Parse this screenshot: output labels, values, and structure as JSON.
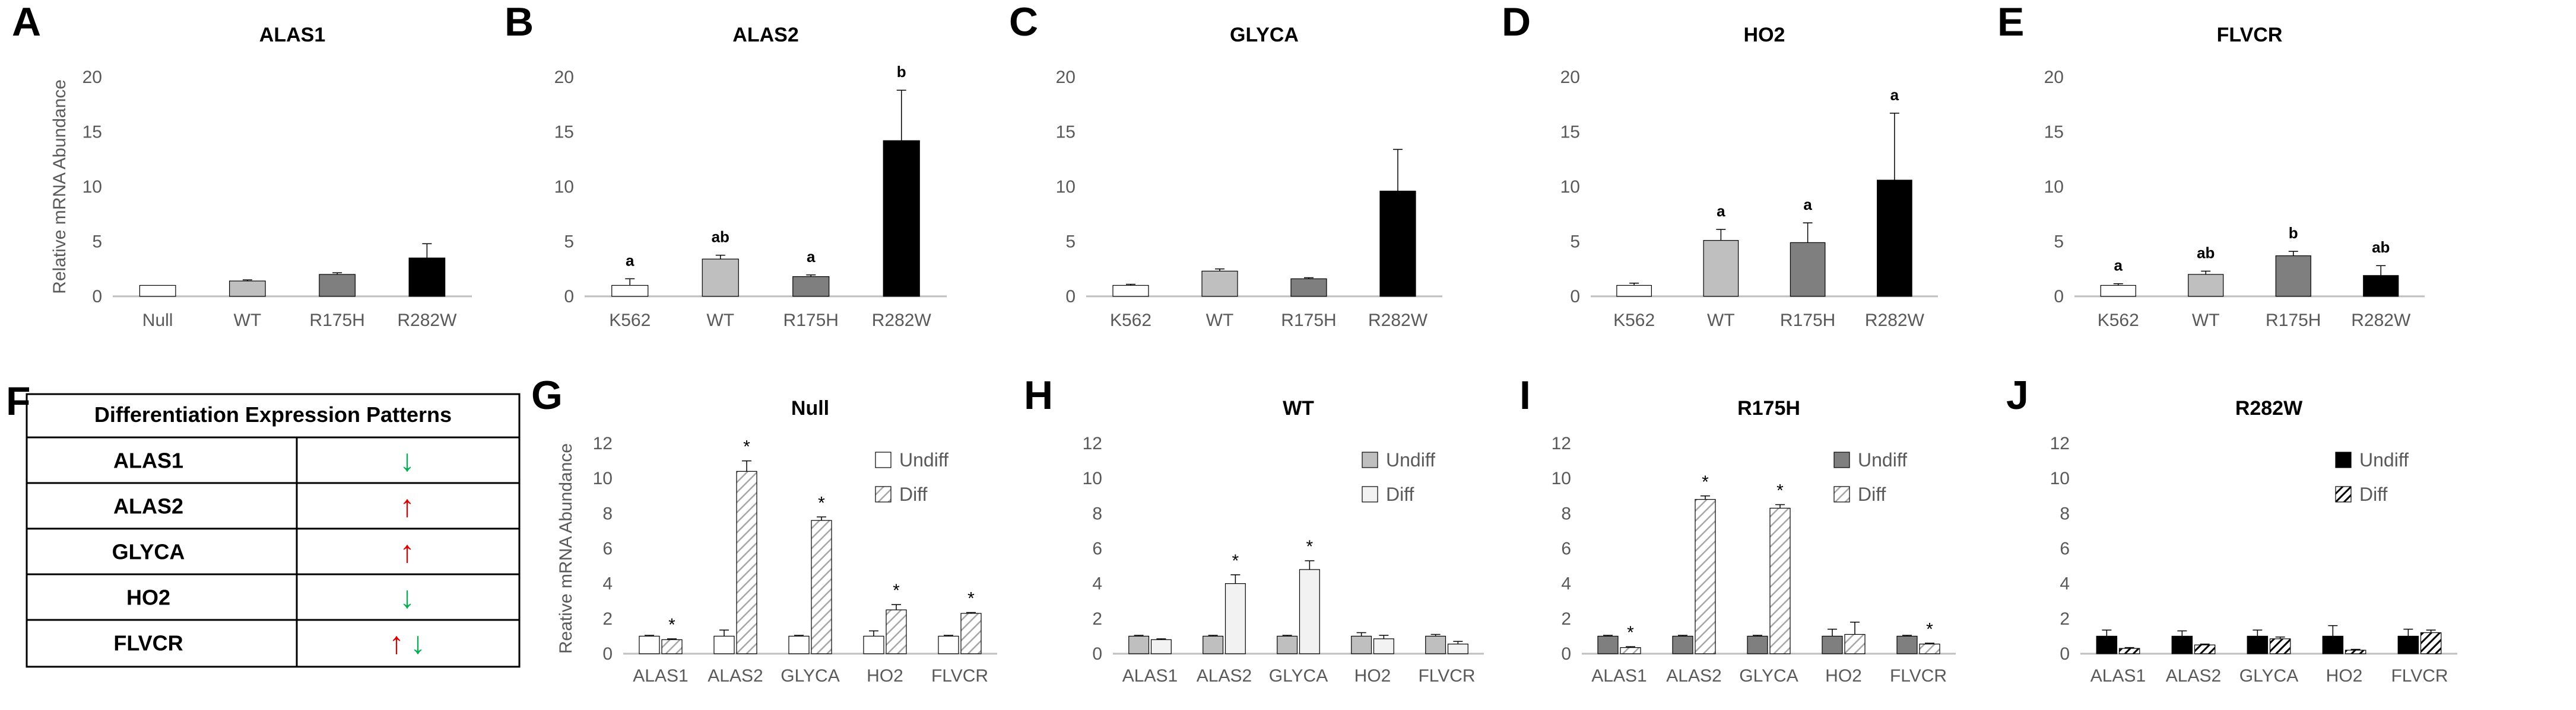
{
  "colors": {
    "null": "#ffffff",
    "wt": "#bfbfbf",
    "r175h": "#7f7f7f",
    "r282w": "#000000",
    "axis": "#bfbfbf",
    "text": "#595959",
    "arrow_up": "#e00000",
    "arrow_down": "#00b050"
  },
  "table": {
    "letter": "F",
    "header": "Differentiation Expression Patterns",
    "rows": [
      {
        "gene": "ALAS1",
        "arrows": [
          {
            "glyph": "↓",
            "dir": "down"
          }
        ]
      },
      {
        "gene": "ALAS2",
        "arrows": [
          {
            "glyph": "↑",
            "dir": "up"
          }
        ]
      },
      {
        "gene": "GLYCA",
        "arrows": [
          {
            "glyph": "↑",
            "dir": "up"
          }
        ]
      },
      {
        "gene": "HO2",
        "arrows": [
          {
            "glyph": "↓",
            "dir": "down"
          }
        ]
      },
      {
        "gene": "FLVCR",
        "arrows": [
          {
            "glyph": "↑",
            "dir": "up"
          },
          {
            "glyph": "↓",
            "dir": "down"
          }
        ]
      }
    ]
  },
  "chart_data": [
    {
      "id": "A",
      "type": "bar",
      "letter": "A",
      "title": "ALAS1",
      "ylabel": "Relative mRNA Abundance",
      "ylim": [
        0,
        20
      ],
      "yticks": [
        "0",
        "5",
        "10",
        "15",
        "20"
      ],
      "categories": [
        "Null",
        "WT",
        "R175H",
        "R282W"
      ],
      "values": [
        1.0,
        1.4,
        2.0,
        3.5
      ],
      "errors": [
        0.0,
        0.1,
        0.15,
        1.3
      ],
      "fills": [
        "null",
        "wt",
        "r175h",
        "r282w"
      ],
      "labels": [
        "",
        "",
        "",
        ""
      ]
    },
    {
      "id": "B",
      "type": "bar",
      "letter": "B",
      "title": "ALAS2",
      "ylabel": "",
      "ylim": [
        0,
        20
      ],
      "yticks": [
        "0",
        "5",
        "10",
        "15",
        "20"
      ],
      "categories": [
        "K562",
        "WT",
        "R175H",
        "R282W"
      ],
      "values": [
        1.0,
        3.4,
        1.8,
        14.2
      ],
      "errors": [
        0.6,
        0.35,
        0.15,
        4.6
      ],
      "fills": [
        "null",
        "wt",
        "r175h",
        "r282w"
      ],
      "labels": [
        "a",
        "ab",
        "a",
        "b"
      ]
    },
    {
      "id": "C",
      "type": "bar",
      "letter": "C",
      "title": "GLYCA",
      "ylabel": "",
      "ylim": [
        0,
        20
      ],
      "yticks": [
        "0",
        "5",
        "10",
        "15",
        "20"
      ],
      "categories": [
        "K562",
        "WT",
        "R175H",
        "R282W"
      ],
      "values": [
        1.0,
        2.3,
        1.6,
        9.6
      ],
      "errors": [
        0.1,
        0.2,
        0.1,
        3.8
      ],
      "fills": [
        "null",
        "wt",
        "r175h",
        "r282w"
      ],
      "labels": [
        "",
        "",
        "",
        ""
      ]
    },
    {
      "id": "D",
      "type": "bar",
      "letter": "D",
      "title": "HO2",
      "ylabel": "",
      "ylim": [
        0,
        20
      ],
      "yticks": [
        "0",
        "5",
        "10",
        "15",
        "20"
      ],
      "categories": [
        "K562",
        "WT",
        "R175H",
        "R282W"
      ],
      "values": [
        1.0,
        5.1,
        4.9,
        10.6
      ],
      "errors": [
        0.2,
        1.0,
        1.8,
        6.1
      ],
      "fills": [
        "null",
        "wt",
        "r175h",
        "r282w"
      ],
      "labels": [
        "",
        "a",
        "a",
        "a"
      ]
    },
    {
      "id": "E",
      "type": "bar",
      "letter": "E",
      "title": "FLVCR",
      "ylabel": "",
      "ylim": [
        0,
        20
      ],
      "yticks": [
        "0",
        "5",
        "10",
        "15",
        "20"
      ],
      "categories": [
        "K562",
        "WT",
        "R175H",
        "R282W"
      ],
      "values": [
        1.0,
        2.0,
        3.7,
        1.9
      ],
      "errors": [
        0.15,
        0.3,
        0.4,
        0.9
      ],
      "fills": [
        "null",
        "wt",
        "r175h",
        "r282w"
      ],
      "labels": [
        "a",
        "ab",
        "b",
        "ab"
      ]
    },
    {
      "id": "G",
      "type": "bar",
      "letter": "G",
      "title": "Null",
      "ylabel": "Reative mRNA Abundance",
      "ylim": [
        0,
        12
      ],
      "yticks": [
        "0",
        "2",
        "4",
        "6",
        "8",
        "10",
        "12"
      ],
      "categories": [
        "ALAS1",
        "ALAS2",
        "GLYCA",
        "HO2",
        "FLVCR"
      ],
      "legend_position": "top-right",
      "series": [
        {
          "name": "Undiff",
          "fill": "null",
          "hatch": false,
          "values": [
            1.0,
            1.0,
            1.0,
            1.0,
            1.0
          ],
          "errors": [
            0.05,
            0.35,
            0.05,
            0.3,
            0.05
          ]
        },
        {
          "name": "Diff",
          "fill": "null",
          "hatch": true,
          "values": [
            0.8,
            10.4,
            7.6,
            2.5,
            2.3
          ],
          "errors": [
            0.05,
            0.6,
            0.2,
            0.3,
            0.05
          ]
        }
      ],
      "stars": [
        "*",
        "*",
        "*",
        "*",
        "*"
      ]
    },
    {
      "id": "H",
      "type": "bar",
      "letter": "H",
      "title": "WT",
      "ylabel": "",
      "ylim": [
        0,
        12
      ],
      "yticks": [
        "0",
        "2",
        "4",
        "6",
        "8",
        "10",
        "12"
      ],
      "categories": [
        "ALAS1",
        "ALAS2",
        "GLYCA",
        "HO2",
        "FLVCR"
      ],
      "legend_position": "top-right",
      "series": [
        {
          "name": "Undiff",
          "fill": "wt",
          "hatch": false,
          "values": [
            1.0,
            1.0,
            1.0,
            1.0,
            1.0
          ],
          "errors": [
            0.05,
            0.05,
            0.05,
            0.2,
            0.1
          ]
        },
        {
          "name": "Diff",
          "fill": "light",
          "hatch": false,
          "values": [
            0.8,
            4.0,
            4.8,
            0.85,
            0.55
          ],
          "errors": [
            0.05,
            0.5,
            0.5,
            0.2,
            0.15
          ]
        }
      ],
      "stars": [
        "",
        "*",
        "*",
        "",
        ""
      ]
    },
    {
      "id": "I",
      "type": "bar",
      "letter": "I",
      "title": "R175H",
      "ylabel": "",
      "ylim": [
        0,
        12
      ],
      "yticks": [
        "0",
        "2",
        "4",
        "6",
        "8",
        "10",
        "12"
      ],
      "categories": [
        "ALAS1",
        "ALAS2",
        "GLYCA",
        "HO2",
        "FLVCR"
      ],
      "legend_position": "top-right",
      "series": [
        {
          "name": "Undiff",
          "fill": "r175h",
          "hatch": false,
          "values": [
            1.0,
            1.0,
            1.0,
            1.0,
            1.0
          ],
          "errors": [
            0.05,
            0.05,
            0.05,
            0.4,
            0.05
          ]
        },
        {
          "name": "Diff",
          "fill": "light",
          "hatch": true,
          "values": [
            0.35,
            8.8,
            8.3,
            1.1,
            0.55
          ],
          "errors": [
            0.05,
            0.2,
            0.2,
            0.7,
            0.05
          ]
        }
      ],
      "stars": [
        "*",
        "*",
        "*",
        "",
        "*"
      ]
    },
    {
      "id": "J",
      "type": "bar",
      "letter": "J",
      "title": "R282W",
      "ylabel": "",
      "ylim": [
        0,
        12
      ],
      "yticks": [
        "0",
        "2",
        "4",
        "6",
        "8",
        "10",
        "12"
      ],
      "categories": [
        "ALAS1",
        "ALAS2",
        "GLYCA",
        "HO2",
        "FLVCR"
      ],
      "legend_position": "top-right",
      "series": [
        {
          "name": "Undiff",
          "fill": "r282w",
          "hatch": false,
          "values": [
            1.0,
            1.0,
            1.0,
            1.0,
            1.0
          ],
          "errors": [
            0.35,
            0.3,
            0.35,
            0.6,
            0.4
          ]
        },
        {
          "name": "Diff",
          "fill": "r282w",
          "hatch": true,
          "values": [
            0.3,
            0.5,
            0.85,
            0.2,
            1.2
          ],
          "errors": [
            0.05,
            0.05,
            0.1,
            0.05,
            0.15
          ]
        }
      ],
      "stars": [
        "",
        "",
        "",
        "",
        ""
      ]
    }
  ]
}
